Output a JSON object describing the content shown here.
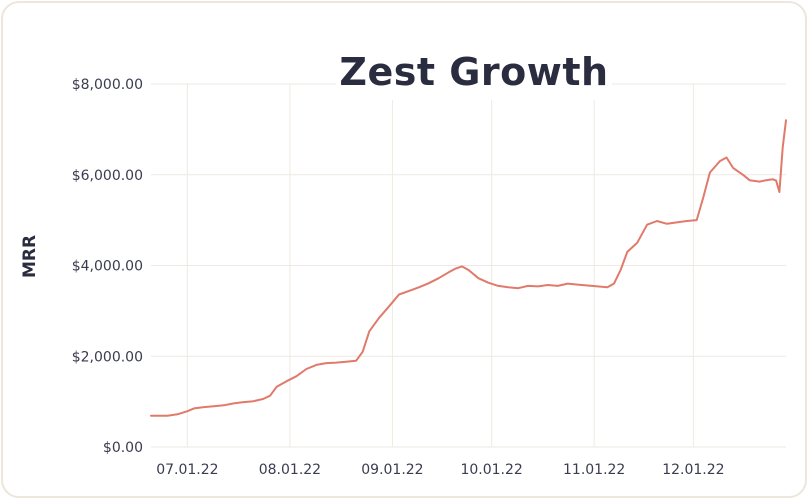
{
  "chart_data": {
    "type": "line",
    "title": "Zest Growth",
    "xlabel": "",
    "ylabel": "MRR",
    "x_range": [
      "2022-06-20",
      "2022-12-29"
    ],
    "ylim": [
      0,
      8000
    ],
    "y_ticks": [
      {
        "value": 0,
        "label": "$0.00"
      },
      {
        "value": 2000,
        "label": "$2,000.00"
      },
      {
        "value": 4000,
        "label": "$4,000.00"
      },
      {
        "value": 6000,
        "label": "$6,000.00"
      },
      {
        "value": 8000,
        "label": "$8,000.00"
      }
    ],
    "x_ticks": [
      {
        "date": "2022-07-01",
        "label": "07.01.22"
      },
      {
        "date": "2022-08-01",
        "label": "08.01.22"
      },
      {
        "date": "2022-09-01",
        "label": "09.01.22"
      },
      {
        "date": "2022-10-01",
        "label": "10.01.22"
      },
      {
        "date": "2022-11-01",
        "label": "11.01.22"
      },
      {
        "date": "2022-12-01",
        "label": "12.01.22"
      }
    ],
    "grid": true,
    "series": [
      {
        "color": "#e07a6a",
        "points": [
          [
            "2022-06-20",
            690
          ],
          [
            "2022-06-25",
            690
          ],
          [
            "2022-06-28",
            720
          ],
          [
            "2022-07-01",
            790
          ],
          [
            "2022-07-03",
            850
          ],
          [
            "2022-07-06",
            880
          ],
          [
            "2022-07-09",
            900
          ],
          [
            "2022-07-12",
            920
          ],
          [
            "2022-07-15",
            960
          ],
          [
            "2022-07-18",
            990
          ],
          [
            "2022-07-21",
            1010
          ],
          [
            "2022-07-24",
            1060
          ],
          [
            "2022-07-26",
            1130
          ],
          [
            "2022-07-28",
            1330
          ],
          [
            "2022-07-31",
            1450
          ],
          [
            "2022-08-03",
            1560
          ],
          [
            "2022-08-06",
            1720
          ],
          [
            "2022-08-09",
            1810
          ],
          [
            "2022-08-12",
            1850
          ],
          [
            "2022-08-15",
            1860
          ],
          [
            "2022-08-18",
            1880
          ],
          [
            "2022-08-21",
            1900
          ],
          [
            "2022-08-23",
            2100
          ],
          [
            "2022-08-25",
            2550
          ],
          [
            "2022-08-28",
            2850
          ],
          [
            "2022-08-31",
            3100
          ],
          [
            "2022-09-03",
            3360
          ],
          [
            "2022-09-06",
            3440
          ],
          [
            "2022-09-09",
            3520
          ],
          [
            "2022-09-12",
            3610
          ],
          [
            "2022-09-15",
            3720
          ],
          [
            "2022-09-18",
            3850
          ],
          [
            "2022-09-20",
            3930
          ],
          [
            "2022-09-22",
            3980
          ],
          [
            "2022-09-24",
            3900
          ],
          [
            "2022-09-27",
            3720
          ],
          [
            "2022-09-30",
            3620
          ],
          [
            "2022-10-03",
            3550
          ],
          [
            "2022-10-06",
            3520
          ],
          [
            "2022-10-09",
            3500
          ],
          [
            "2022-10-12",
            3550
          ],
          [
            "2022-10-15",
            3540
          ],
          [
            "2022-10-18",
            3570
          ],
          [
            "2022-10-21",
            3550
          ],
          [
            "2022-10-24",
            3600
          ],
          [
            "2022-10-27",
            3580
          ],
          [
            "2022-10-30",
            3560
          ],
          [
            "2022-11-02",
            3540
          ],
          [
            "2022-11-05",
            3520
          ],
          [
            "2022-11-07",
            3600
          ],
          [
            "2022-11-09",
            3900
          ],
          [
            "2022-11-11",
            4300
          ],
          [
            "2022-11-14",
            4500
          ],
          [
            "2022-11-17",
            4900
          ],
          [
            "2022-11-20",
            4980
          ],
          [
            "2022-11-23",
            4920
          ],
          [
            "2022-11-26",
            4950
          ],
          [
            "2022-11-29",
            4980
          ],
          [
            "2022-12-02",
            5000
          ],
          [
            "2022-12-04",
            5500
          ],
          [
            "2022-12-06",
            6050
          ],
          [
            "2022-12-09",
            6300
          ],
          [
            "2022-12-11",
            6380
          ],
          [
            "2022-12-13",
            6150
          ],
          [
            "2022-12-16",
            6000
          ],
          [
            "2022-12-18",
            5880
          ],
          [
            "2022-12-21",
            5850
          ],
          [
            "2022-12-23",
            5880
          ],
          [
            "2022-12-25",
            5900
          ],
          [
            "2022-12-26",
            5870
          ],
          [
            "2022-12-27",
            5620
          ],
          [
            "2022-12-28",
            6600
          ],
          [
            "2022-12-29",
            7200
          ]
        ]
      }
    ]
  }
}
